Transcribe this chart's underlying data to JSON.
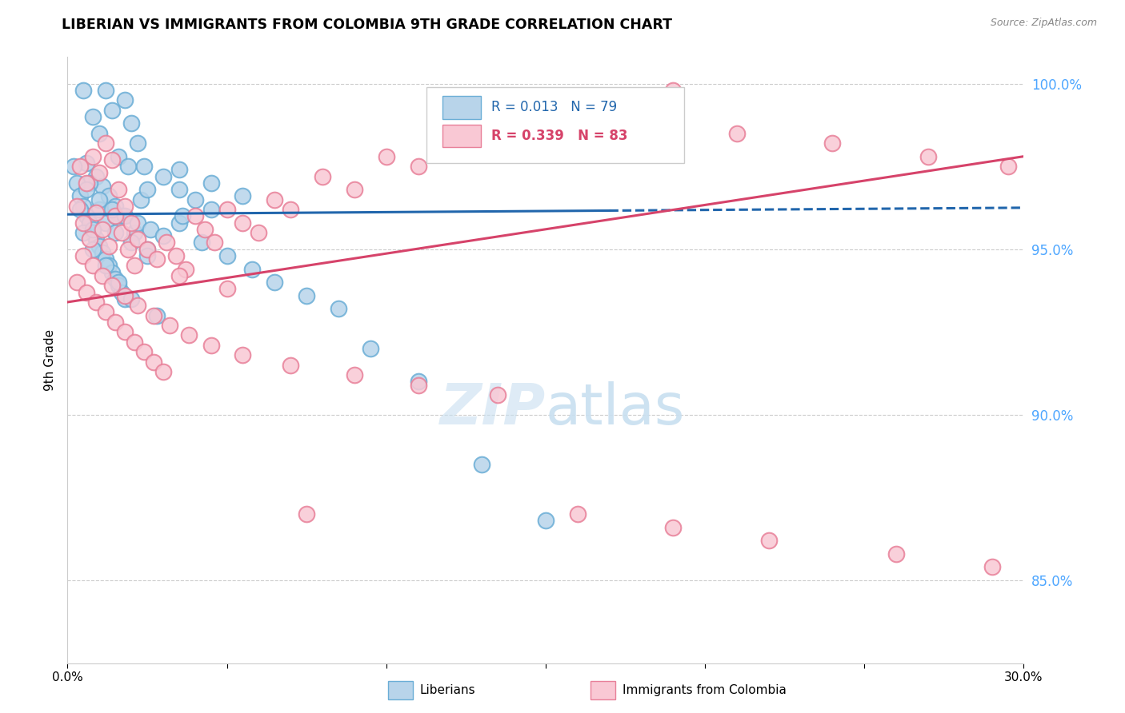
{
  "title": "LIBERIAN VS IMMIGRANTS FROM COLOMBIA 9TH GRADE CORRELATION CHART",
  "source_text": "Source: ZipAtlas.com",
  "ylabel": "9th Grade",
  "x_min": 0.0,
  "x_max": 0.3,
  "y_min": 0.825,
  "y_max": 1.008,
  "x_ticks": [
    0.0,
    0.05,
    0.1,
    0.15,
    0.2,
    0.25,
    0.3
  ],
  "x_tick_labels": [
    "0.0%",
    "",
    "",
    "",
    "",
    "",
    "30.0%"
  ],
  "y_ticks": [
    0.85,
    0.9,
    0.95,
    1.0
  ],
  "y_tick_labels": [
    "85.0%",
    "90.0%",
    "95.0%",
    "100.0%"
  ],
  "legend_label1": "Liberians",
  "legend_label2": "Immigrants from Colombia",
  "blue_face": "#b8d4ea",
  "blue_edge": "#6baed6",
  "pink_face": "#f9c8d4",
  "pink_edge": "#e88099",
  "blue_line_color": "#2166ac",
  "pink_line_color": "#d6436a",
  "yaxis_tick_color": "#4da6ff",
  "watermark_color": "#c8dff0",
  "blue_dots_x": [
    0.005,
    0.008,
    0.01,
    0.012,
    0.014,
    0.016,
    0.018,
    0.02,
    0.022,
    0.024,
    0.006,
    0.009,
    0.011,
    0.013,
    0.015,
    0.017,
    0.019,
    0.021,
    0.023,
    0.025,
    0.007,
    0.01,
    0.012,
    0.015,
    0.02,
    0.025,
    0.03,
    0.035,
    0.04,
    0.045,
    0.003,
    0.004,
    0.005,
    0.006,
    0.007,
    0.008,
    0.009,
    0.01,
    0.011,
    0.012,
    0.013,
    0.014,
    0.015,
    0.016,
    0.017,
    0.018,
    0.005,
    0.008,
    0.012,
    0.016,
    0.02,
    0.028,
    0.035,
    0.042,
    0.05,
    0.058,
    0.065,
    0.075,
    0.085,
    0.095,
    0.11,
    0.13,
    0.15,
    0.015,
    0.025,
    0.035,
    0.045,
    0.055,
    0.008,
    0.004,
    0.006,
    0.01,
    0.014,
    0.018,
    0.022,
    0.026,
    0.03,
    0.036,
    0.002
  ],
  "blue_dots_y": [
    0.998,
    0.99,
    0.985,
    0.998,
    0.992,
    0.978,
    0.995,
    0.988,
    0.982,
    0.975,
    0.976,
    0.972,
    0.969,
    0.966,
    0.963,
    0.96,
    0.975,
    0.955,
    0.965,
    0.95,
    0.97,
    0.962,
    0.958,
    0.955,
    0.952,
    0.948,
    0.972,
    0.968,
    0.965,
    0.962,
    0.97,
    0.966,
    0.963,
    0.96,
    0.958,
    0.955,
    0.953,
    0.951,
    0.949,
    0.947,
    0.945,
    0.943,
    0.941,
    0.939,
    0.937,
    0.935,
    0.955,
    0.95,
    0.945,
    0.94,
    0.935,
    0.93,
    0.958,
    0.952,
    0.948,
    0.944,
    0.94,
    0.936,
    0.932,
    0.92,
    0.91,
    0.885,
    0.868,
    0.96,
    0.968,
    0.974,
    0.97,
    0.966,
    0.956,
    0.962,
    0.968,
    0.965,
    0.962,
    0.96,
    0.958,
    0.956,
    0.954,
    0.96,
    0.975
  ],
  "pink_dots_x": [
    0.003,
    0.005,
    0.007,
    0.009,
    0.011,
    0.013,
    0.015,
    0.017,
    0.019,
    0.021,
    0.004,
    0.006,
    0.008,
    0.01,
    0.012,
    0.014,
    0.016,
    0.018,
    0.02,
    0.022,
    0.025,
    0.028,
    0.031,
    0.034,
    0.037,
    0.04,
    0.043,
    0.046,
    0.05,
    0.055,
    0.06,
    0.065,
    0.07,
    0.08,
    0.09,
    0.1,
    0.11,
    0.12,
    0.13,
    0.14,
    0.15,
    0.17,
    0.19,
    0.21,
    0.24,
    0.27,
    0.295,
    0.003,
    0.006,
    0.009,
    0.012,
    0.015,
    0.018,
    0.021,
    0.024,
    0.027,
    0.03,
    0.005,
    0.008,
    0.011,
    0.014,
    0.018,
    0.022,
    0.027,
    0.032,
    0.038,
    0.045,
    0.055,
    0.07,
    0.09,
    0.11,
    0.135,
    0.16,
    0.19,
    0.22,
    0.26,
    0.29,
    0.035,
    0.05,
    0.075
  ],
  "pink_dots_y": [
    0.963,
    0.958,
    0.953,
    0.961,
    0.956,
    0.951,
    0.96,
    0.955,
    0.95,
    0.945,
    0.975,
    0.97,
    0.978,
    0.973,
    0.982,
    0.977,
    0.968,
    0.963,
    0.958,
    0.953,
    0.95,
    0.947,
    0.952,
    0.948,
    0.944,
    0.96,
    0.956,
    0.952,
    0.962,
    0.958,
    0.955,
    0.965,
    0.962,
    0.972,
    0.968,
    0.978,
    0.975,
    0.988,
    0.985,
    0.982,
    0.99,
    0.995,
    0.998,
    0.985,
    0.982,
    0.978,
    0.975,
    0.94,
    0.937,
    0.934,
    0.931,
    0.928,
    0.925,
    0.922,
    0.919,
    0.916,
    0.913,
    0.948,
    0.945,
    0.942,
    0.939,
    0.936,
    0.933,
    0.93,
    0.927,
    0.924,
    0.921,
    0.918,
    0.915,
    0.912,
    0.909,
    0.906,
    0.87,
    0.866,
    0.862,
    0.858,
    0.854,
    0.942,
    0.938,
    0.87
  ],
  "blue_line_x0": 0.0,
  "blue_line_x_solid_end": 0.17,
  "blue_line_x1": 0.3,
  "blue_line_y0": 0.9605,
  "blue_line_y1": 0.9625,
  "pink_line_x0": 0.0,
  "pink_line_x1": 0.3,
  "pink_line_y0": 0.934,
  "pink_line_y1": 0.978
}
